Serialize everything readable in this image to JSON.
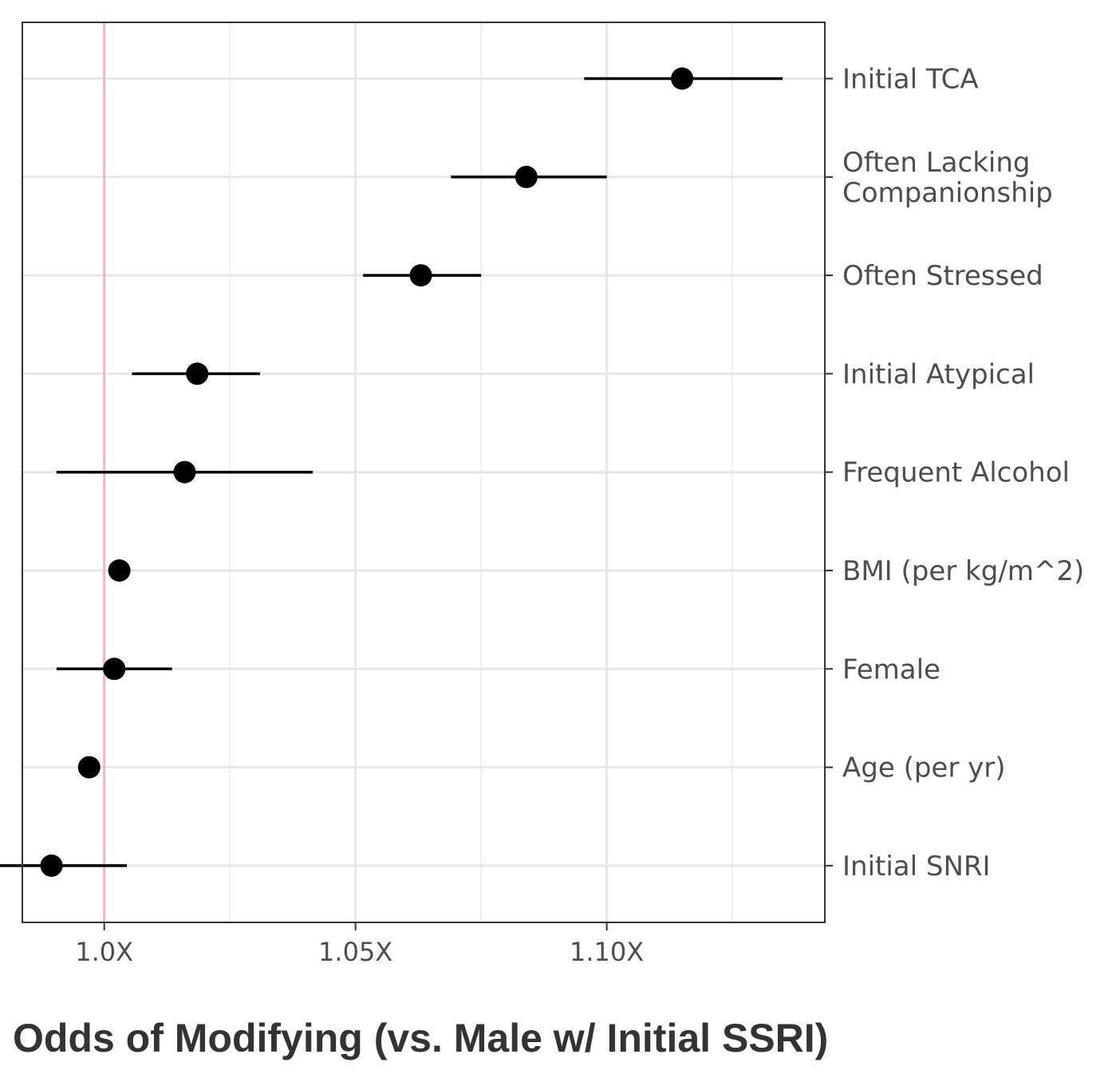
{
  "chart_data": {
    "type": "scatter",
    "title": "",
    "xlabel": "Odds of Modifying (vs. Male w/ Initial SSRI)",
    "ylabel": "",
    "xlim": [
      0.9837,
      1.1434
    ],
    "x_ticks": [
      {
        "value": 1.0,
        "label": "1.0X"
      },
      {
        "value": 1.05,
        "label": "1.05X"
      },
      {
        "value": 1.1,
        "label": "1.10X"
      }
    ],
    "x_minor_gridlines": [
      0.975,
      1.025,
      1.075,
      1.125
    ],
    "reference_line": {
      "x": 1.0,
      "color": "#f4b6b6"
    },
    "grid": true,
    "legend": "none",
    "point_color": "#000000",
    "categories": [
      {
        "label": [
          "Initial TCA"
        ],
        "estimate": 1.115,
        "lower": 1.0955,
        "upper": 1.135
      },
      {
        "label": [
          "Often Lacking",
          "Companionship"
        ],
        "estimate": 1.084,
        "lower": 1.069,
        "upper": 1.1
      },
      {
        "label": [
          "Often Stressed"
        ],
        "estimate": 1.063,
        "lower": 1.0515,
        "upper": 1.075
      },
      {
        "label": [
          "Initial Atypical"
        ],
        "estimate": 1.0185,
        "lower": 1.0055,
        "upper": 1.031
      },
      {
        "label": [
          "Frequent Alcohol"
        ],
        "estimate": 1.016,
        "lower": 0.9905,
        "upper": 1.0415
      },
      {
        "label": [
          "BMI (per kg/m^2)"
        ],
        "estimate": 1.003,
        "lower": 1.003,
        "upper": 1.003
      },
      {
        "label": [
          "Female"
        ],
        "estimate": 1.002,
        "lower": 0.9905,
        "upper": 1.0135
      },
      {
        "label": [
          "Age (per yr)"
        ],
        "estimate": 0.997,
        "lower": 0.997,
        "upper": 0.997
      },
      {
        "label": [
          "Initial SNRI"
        ],
        "estimate": 0.9895,
        "lower": 0.975,
        "upper": 1.0045
      }
    ]
  }
}
